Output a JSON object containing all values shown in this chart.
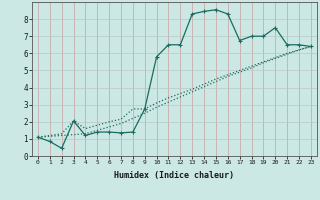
{
  "title": "",
  "xlabel": "Humidex (Indice chaleur)",
  "bg_color": "#cce8e5",
  "grid_color_h": "#c8c8c8",
  "grid_color_v": "#d4a0a0",
  "line_color": "#1a6b60",
  "xlim": [
    -0.5,
    23.5
  ],
  "ylim": [
    0,
    9
  ],
  "line1_x": [
    0,
    1,
    2,
    3,
    4,
    5,
    6,
    7,
    8,
    9,
    10,
    11,
    12,
    13,
    14,
    15,
    16,
    17,
    18,
    19,
    20,
    21,
    22,
    23
  ],
  "line1_y": [
    1.1,
    0.85,
    0.45,
    2.05,
    1.2,
    1.4,
    1.4,
    1.35,
    1.4,
    2.75,
    5.8,
    6.5,
    6.5,
    8.3,
    8.45,
    8.55,
    8.3,
    6.75,
    7.0,
    7.0,
    7.5,
    6.5,
    6.5,
    6.4
  ],
  "line2_x": [
    0,
    1,
    2,
    3,
    4,
    5,
    6,
    7,
    8,
    9,
    10,
    11,
    12,
    13,
    14,
    15,
    16,
    17,
    18,
    19,
    20,
    21,
    22,
    23
  ],
  "line2_y": [
    1.1,
    1.15,
    1.2,
    1.25,
    1.3,
    1.5,
    1.7,
    1.9,
    2.2,
    2.5,
    2.85,
    3.15,
    3.45,
    3.75,
    4.05,
    4.35,
    4.65,
    4.9,
    5.15,
    5.45,
    5.7,
    5.95,
    6.2,
    6.4
  ],
  "line3_x": [
    0,
    1,
    2,
    3,
    4,
    5,
    6,
    7,
    8,
    9,
    10,
    11,
    12,
    13,
    14,
    15,
    16,
    17,
    18,
    19,
    20,
    21,
    22,
    23
  ],
  "line3_y": [
    1.1,
    1.2,
    1.3,
    2.05,
    1.6,
    1.8,
    2.0,
    2.15,
    2.75,
    2.75,
    3.1,
    3.4,
    3.65,
    3.9,
    4.2,
    4.5,
    4.75,
    5.0,
    5.25,
    5.5,
    5.75,
    6.0,
    6.2,
    6.4
  ]
}
